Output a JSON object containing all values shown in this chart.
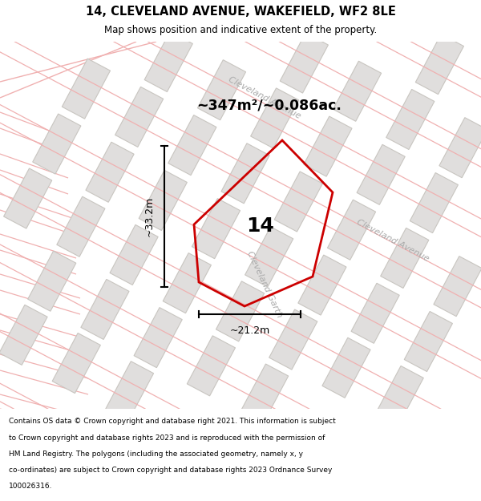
{
  "title": "14, CLEVELAND AVENUE, WAKEFIELD, WF2 8LE",
  "subtitle": "Map shows position and indicative extent of the property.",
  "footer_lines": [
    "Contains OS data © Crown copyright and database right 2021. This information is subject",
    "to Crown copyright and database rights 2023 and is reproduced with the permission of",
    "HM Land Registry. The polygons (including the associated geometry, namely x, y",
    "co-ordinates) are subject to Crown copyright and database rights 2023 Ordnance Survey",
    "100026316."
  ],
  "area_text": "~347m²/~0.086ac.",
  "property_number": "14",
  "dim_width": "~21.2m",
  "dim_height": "~33.2m",
  "map_bg": "#f7f6f4",
  "plot_color": "#cc0000",
  "road_label_upper": "Cleveland Avenue",
  "road_label_lower": "Cleveland Avenue",
  "road_label_mid": "Cleveland Garth",
  "building_color": "#e0dedd",
  "building_stroke": "#c8c5c0",
  "road_color": "#f0b0b0",
  "text_color_dim": "#111111",
  "road_label_color": "#aaaaaa"
}
